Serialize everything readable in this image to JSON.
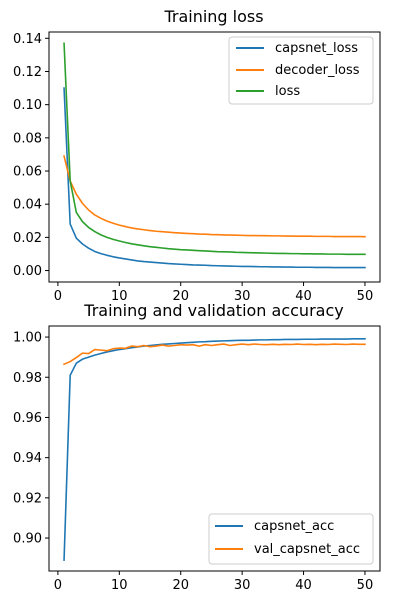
{
  "chart_data": [
    {
      "type": "line",
      "title": "Training loss",
      "xlabel": "",
      "ylabel": "",
      "xlim": [
        -1.45,
        52.45
      ],
      "ylim": [
        -0.0069,
        0.1438
      ],
      "xticks": [
        0,
        10,
        20,
        30,
        40,
        50
      ],
      "xtick_labels": [
        "0",
        "10",
        "20",
        "30",
        "40",
        "50"
      ],
      "yticks": [
        0.0,
        0.02,
        0.04,
        0.06,
        0.08,
        0.1,
        0.12,
        0.14
      ],
      "ytick_labels": [
        "0.00",
        "0.02",
        "0.04",
        "0.06",
        "0.08",
        "0.10",
        "0.12",
        "0.14"
      ],
      "grid": false,
      "legend_position": "top-right",
      "x": [
        1,
        2,
        3,
        4,
        5,
        6,
        7,
        8,
        9,
        10,
        11,
        12,
        13,
        14,
        15,
        16,
        17,
        18,
        19,
        20,
        21,
        22,
        23,
        24,
        25,
        26,
        27,
        28,
        29,
        30,
        31,
        32,
        33,
        34,
        35,
        36,
        37,
        38,
        39,
        40,
        41,
        42,
        43,
        44,
        45,
        46,
        47,
        48,
        49,
        50
      ],
      "series": [
        {
          "name": "capsnet_loss",
          "color": "#1f77b4",
          "values": [
            0.11,
            0.028,
            0.0195,
            0.016,
            0.0135,
            0.0115,
            0.0102,
            0.0092,
            0.0083,
            0.0076,
            0.007,
            0.0064,
            0.0058,
            0.0054,
            0.0051,
            0.0048,
            0.0045,
            0.0042,
            0.004,
            0.0038,
            0.0036,
            0.0034,
            0.0033,
            0.0032,
            0.003,
            0.0029,
            0.0028,
            0.0027,
            0.0026,
            0.0025,
            0.0025,
            0.0024,
            0.0023,
            0.0023,
            0.0022,
            0.0022,
            0.0021,
            0.0021,
            0.002,
            0.002,
            0.002,
            0.0019,
            0.0019,
            0.0019,
            0.0018,
            0.0018,
            0.0018,
            0.0018,
            0.0018,
            0.0018
          ]
        },
        {
          "name": "decoder_loss",
          "color": "#ff7f0e",
          "values": [
            0.069,
            0.054,
            0.046,
            0.0405,
            0.0365,
            0.0335,
            0.0315,
            0.0298,
            0.0285,
            0.0274,
            0.0265,
            0.0257,
            0.0251,
            0.0246,
            0.0241,
            0.0237,
            0.0234,
            0.0231,
            0.0228,
            0.0226,
            0.0224,
            0.0222,
            0.022,
            0.0219,
            0.0217,
            0.0216,
            0.0215,
            0.0214,
            0.0213,
            0.0212,
            0.0211,
            0.0211,
            0.021,
            0.021,
            0.0209,
            0.0209,
            0.0208,
            0.0208,
            0.0207,
            0.0207,
            0.0207,
            0.0206,
            0.0206,
            0.0206,
            0.0205,
            0.0205,
            0.0205,
            0.0205,
            0.0205,
            0.0204
          ]
        },
        {
          "name": "loss",
          "color": "#2ca02c",
          "values": [
            0.137,
            0.054,
            0.035,
            0.0295,
            0.026,
            0.0235,
            0.0215,
            0.02,
            0.0188,
            0.0178,
            0.0169,
            0.0161,
            0.0155,
            0.0149,
            0.0144,
            0.014,
            0.0136,
            0.0132,
            0.0129,
            0.0126,
            0.0124,
            0.0122,
            0.012,
            0.0118,
            0.0116,
            0.0114,
            0.0113,
            0.0112,
            0.011,
            0.0109,
            0.0108,
            0.0107,
            0.0106,
            0.0105,
            0.0104,
            0.0103,
            0.0103,
            0.0102,
            0.0102,
            0.0101,
            0.0101,
            0.01,
            0.01,
            0.0099,
            0.0099,
            0.0099,
            0.0098,
            0.0098,
            0.0098,
            0.0098
          ]
        }
      ]
    },
    {
      "type": "line",
      "title": "Training and validation accuracy",
      "xlabel": "",
      "ylabel": "",
      "xlim": [
        -1.45,
        52.45
      ],
      "ylim": [
        0.8836,
        1.0055
      ],
      "xticks": [
        0,
        10,
        20,
        30,
        40,
        50
      ],
      "xtick_labels": [
        "0",
        "10",
        "20",
        "30",
        "40",
        "50"
      ],
      "yticks": [
        0.9,
        0.92,
        0.94,
        0.96,
        0.98,
        1.0
      ],
      "ytick_labels": [
        "0.90",
        "0.92",
        "0.94",
        "0.96",
        "0.98",
        "1.00"
      ],
      "grid": false,
      "legend_position": "bottom-right",
      "x": [
        1,
        2,
        3,
        4,
        5,
        6,
        7,
        8,
        9,
        10,
        11,
        12,
        13,
        14,
        15,
        16,
        17,
        18,
        19,
        20,
        21,
        22,
        23,
        24,
        25,
        26,
        27,
        28,
        29,
        30,
        31,
        32,
        33,
        34,
        35,
        36,
        37,
        38,
        39,
        40,
        41,
        42,
        43,
        44,
        45,
        46,
        47,
        48,
        49,
        50
      ],
      "series": [
        {
          "name": "capsnet_acc",
          "color": "#1f77b4",
          "values": [
            0.889,
            0.981,
            0.987,
            0.989,
            0.99,
            0.991,
            0.9918,
            0.9926,
            0.9932,
            0.9938,
            0.9942,
            0.9947,
            0.9951,
            0.9955,
            0.9958,
            0.9961,
            0.9964,
            0.9966,
            0.9968,
            0.997,
            0.9972,
            0.9974,
            0.9976,
            0.9977,
            0.9979,
            0.998,
            0.9981,
            0.9982,
            0.9983,
            0.9984,
            0.9984,
            0.9985,
            0.9986,
            0.9986,
            0.9987,
            0.9987,
            0.9988,
            0.9988,
            0.9988,
            0.9989,
            0.9989,
            0.9989,
            0.999,
            0.999,
            0.999,
            0.999,
            0.999,
            0.9991,
            0.9991,
            0.9991
          ]
        },
        {
          "name": "val_capsnet_acc",
          "color": "#ff7f0e",
          "values": [
            0.9865,
            0.9878,
            0.9898,
            0.992,
            0.9918,
            0.9938,
            0.9935,
            0.9932,
            0.9942,
            0.9945,
            0.9944,
            0.9955,
            0.9952,
            0.9958,
            0.9952,
            0.9955,
            0.996,
            0.9955,
            0.9958,
            0.9962,
            0.996,
            0.9962,
            0.9955,
            0.9962,
            0.9958,
            0.9962,
            0.9965,
            0.9958,
            0.9962,
            0.9965,
            0.9962,
            0.9965,
            0.9963,
            0.9962,
            0.9964,
            0.9962,
            0.9964,
            0.9963,
            0.9965,
            0.9963,
            0.9964,
            0.9962,
            0.9964,
            0.9963,
            0.9965,
            0.9964,
            0.9963,
            0.9965,
            0.9964,
            0.9964
          ]
        }
      ]
    }
  ]
}
